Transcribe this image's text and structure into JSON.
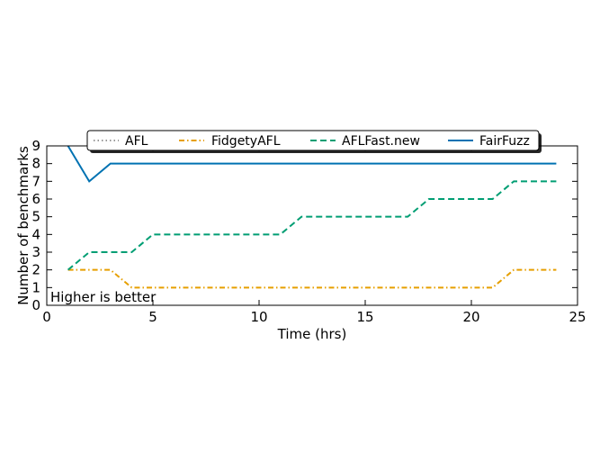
{
  "chart_data": {
    "type": "line",
    "title": "",
    "xlabel": "Time (hrs)",
    "ylabel": "Number of benchmarks",
    "xlim": [
      0,
      25
    ],
    "ylim": [
      0,
      9
    ],
    "xticks": [
      0,
      5,
      10,
      15,
      20,
      25
    ],
    "yticks": [
      0,
      1,
      2,
      3,
      4,
      5,
      6,
      7,
      8,
      9
    ],
    "grid": false,
    "legend_position": "top-center",
    "annotation": "Higher is better",
    "x": [
      1,
      2,
      3,
      4,
      5,
      6,
      7,
      8,
      9,
      10,
      11,
      12,
      13,
      14,
      15,
      16,
      17,
      18,
      19,
      20,
      21,
      22,
      23,
      24
    ],
    "series": [
      {
        "name": "AFL",
        "color": "#999999",
        "dash": "dotted",
        "values": [
          null,
          null,
          null,
          null,
          null,
          null,
          null,
          null,
          null,
          null,
          null,
          null,
          null,
          null,
          null,
          null,
          null,
          null,
          null,
          null,
          null,
          null,
          null,
          null
        ]
      },
      {
        "name": "FidgetyAFL",
        "color": "#e69f00",
        "dash": "dashdot",
        "values": [
          2,
          2,
          2,
          1,
          1,
          1,
          1,
          1,
          1,
          1,
          1,
          1,
          1,
          1,
          1,
          1,
          1,
          1,
          1,
          1,
          1,
          2,
          2,
          2
        ]
      },
      {
        "name": "AFLFast.new",
        "color": "#009e73",
        "dash": "dashed",
        "values": [
          2,
          3,
          3,
          3,
          4,
          4,
          4,
          4,
          4,
          4,
          4,
          5,
          5,
          5,
          5,
          5,
          5,
          6,
          6,
          6,
          6,
          7,
          7,
          7
        ]
      },
      {
        "name": "FairFuzz",
        "color": "#0072b2",
        "dash": "solid",
        "values": [
          9,
          7,
          8,
          8,
          8,
          8,
          8,
          8,
          8,
          8,
          8,
          8,
          8,
          8,
          8,
          8,
          8,
          8,
          8,
          8,
          8,
          8,
          8,
          8
        ]
      }
    ]
  }
}
